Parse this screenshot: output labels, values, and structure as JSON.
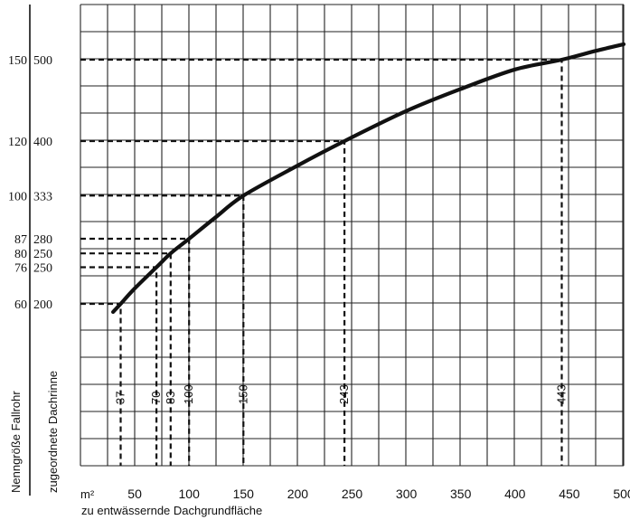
{
  "chart_data": {
    "type": "line",
    "xlabel_unit": "m²",
    "xlabel": "zu entwässernde Dachgrundfläche",
    "ylabel_outer": "Nenngröße Fallrohr",
    "ylabel_inner": "zugeordnete Dachrinne",
    "xlim": [
      0,
      500
    ],
    "x_ticks": [
      50,
      100,
      150,
      200,
      250,
      300,
      350,
      400,
      450,
      500
    ],
    "grid": true,
    "series": [
      {
        "x": [
          30,
          37,
          50,
          70,
          83,
          100,
          125,
          150,
          200,
          243,
          300,
          350,
          400,
          443,
          475,
          500
        ],
        "y": [
          190,
          200,
          219,
          245,
          262,
          280,
          307,
          333,
          370,
          400,
          437,
          464,
          488,
          500,
          511,
          519
        ]
      }
    ],
    "reference_points": [
      {
        "x": 37,
        "x_label": "37",
        "downpipe": "60",
        "gutter": "200"
      },
      {
        "x": 70,
        "x_label": "70",
        "downpipe": "76",
        "gutter": "250"
      },
      {
        "x": 83,
        "x_label": "83",
        "downpipe": "80",
        "gutter": "250"
      },
      {
        "x": 100,
        "x_label": "100",
        "downpipe": "87",
        "gutter": "280"
      },
      {
        "x": 150,
        "x_label": "150",
        "downpipe": "100",
        "gutter": "333"
      },
      {
        "x": 243,
        "x_label": "243",
        "downpipe": "120",
        "gutter": "400"
      },
      {
        "x": 443,
        "x_label": "443",
        "downpipe": "150",
        "gutter": "500"
      }
    ]
  }
}
